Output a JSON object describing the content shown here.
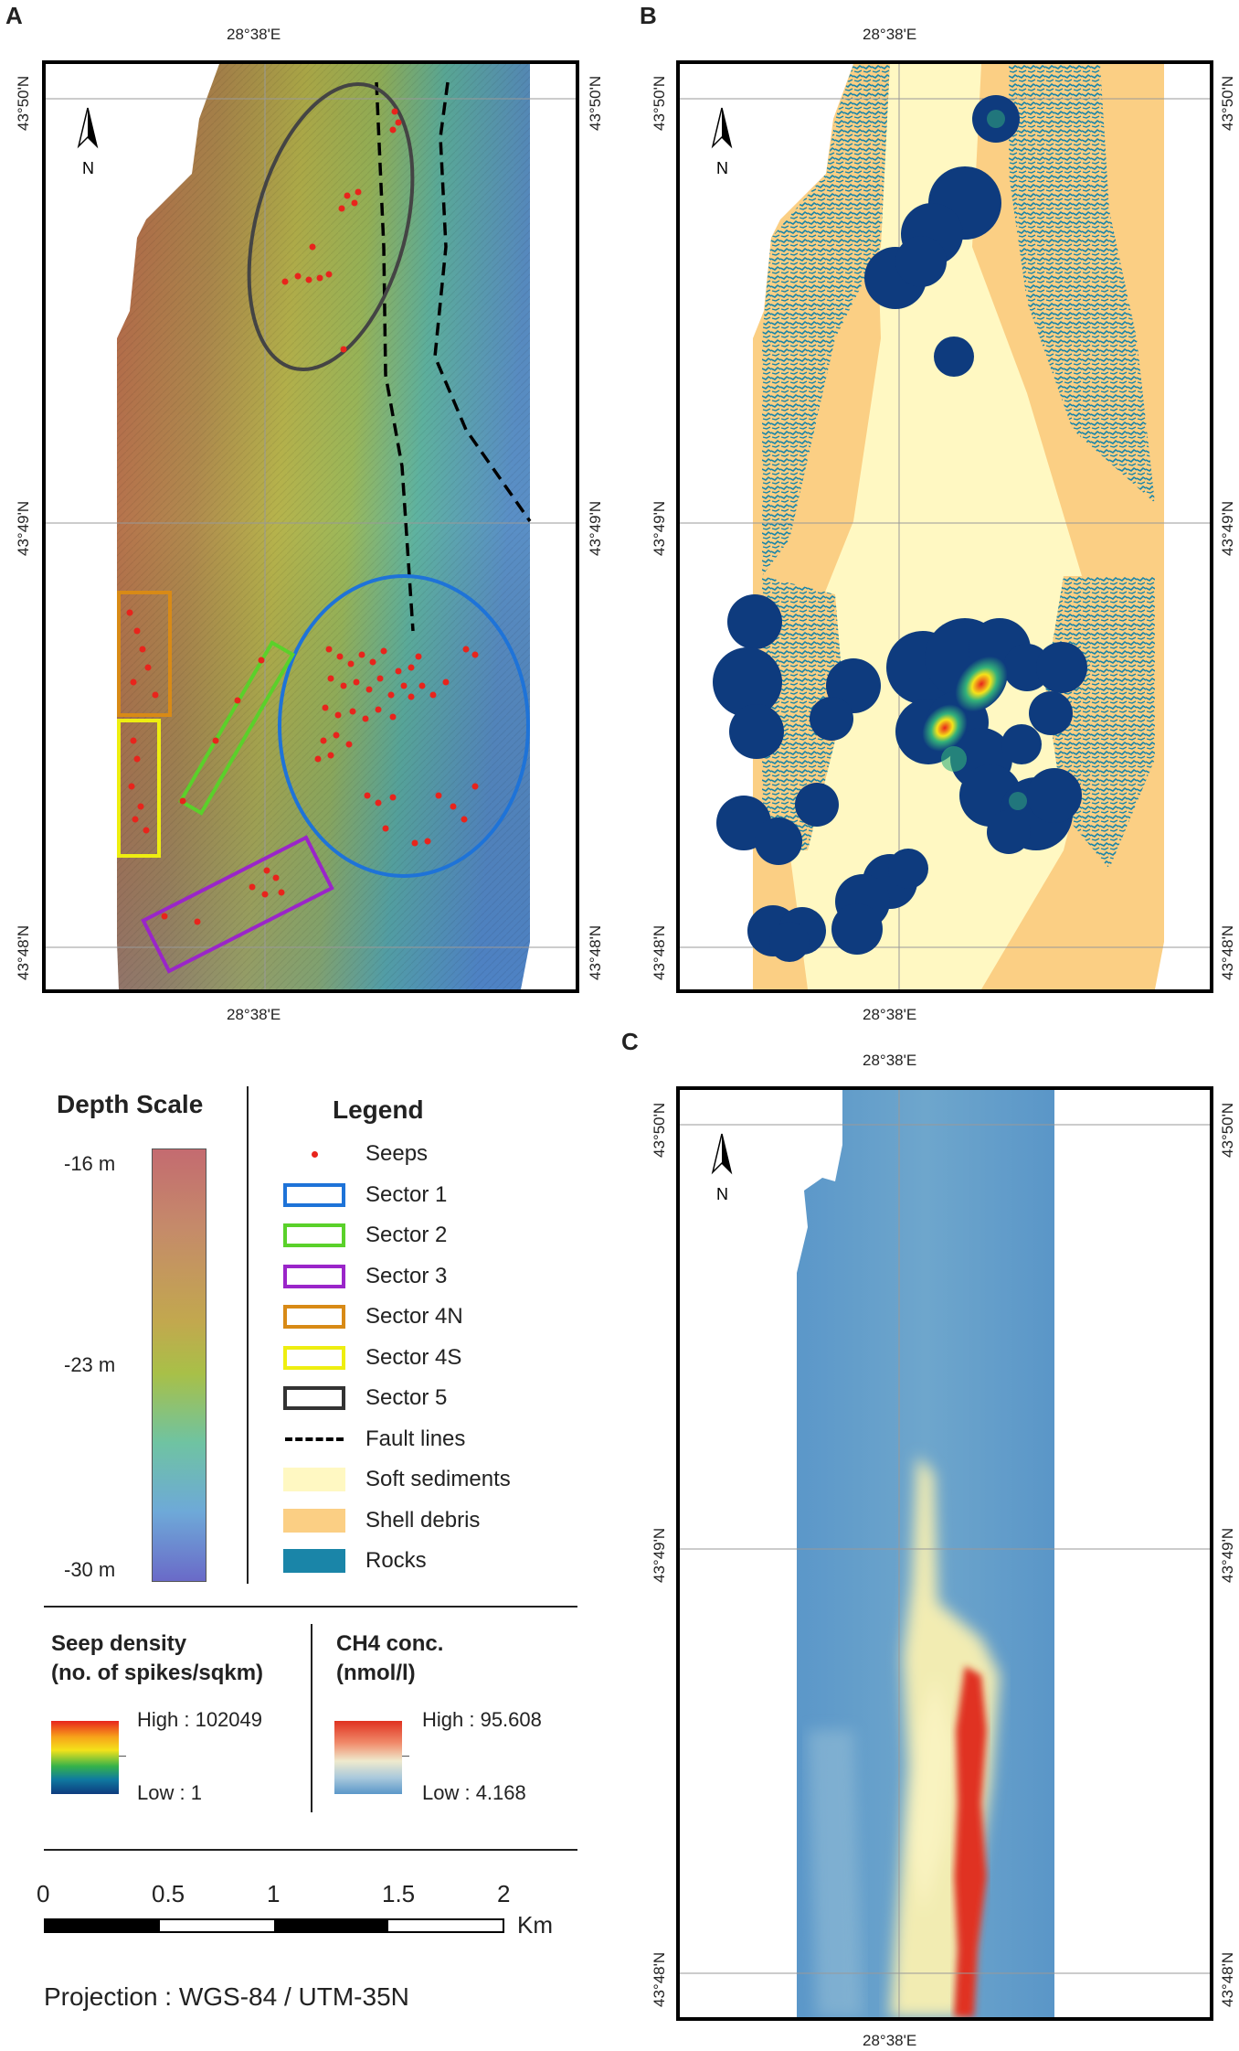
{
  "panels": {
    "a": {
      "letter": "A",
      "lon_top": "28°38'E",
      "lon_bottom": "28°38'E",
      "lat": [
        "43°50'N",
        "43°49'N",
        "43°48'N"
      ]
    },
    "b": {
      "letter": "B",
      "lon_top": "28°38'E",
      "lon_bottom": "28°38'E",
      "lat": [
        "43°50'N",
        "43°49'N",
        "43°48'N"
      ]
    },
    "c": {
      "letter": "C",
      "lon_top": "28°38'E",
      "lon_bottom": "28°38'E",
      "lat": [
        "43°50'N",
        "43°49'N",
        "43°48'N"
      ]
    },
    "north_label": "N"
  },
  "depth_scale": {
    "title": "Depth Scale",
    "labels": [
      "-16 m",
      "-23 m",
      "-30 m"
    ]
  },
  "legend": {
    "title": "Legend",
    "items": [
      {
        "label": "Seeps",
        "symbol": "dot",
        "color": "#e8241c"
      },
      {
        "label": "Sector 1",
        "symbol": "box",
        "color": "#1e73d8"
      },
      {
        "label": "Sector 2",
        "symbol": "box",
        "color": "#5ad12a"
      },
      {
        "label": "Sector 3",
        "symbol": "box",
        "color": "#9a25c9"
      },
      {
        "label": "Sector 4N",
        "symbol": "box",
        "color": "#d88a16"
      },
      {
        "label": "Sector 4S",
        "symbol": "box",
        "color": "#eeee10"
      },
      {
        "label": "Sector 5",
        "symbol": "box",
        "color": "#333333"
      },
      {
        "label": "Fault lines",
        "symbol": "dash",
        "color": "#000000"
      },
      {
        "label": "Soft sediments",
        "symbol": "fill",
        "color": "#fff8c2"
      },
      {
        "label": "Shell debris",
        "symbol": "fill",
        "color": "#fbcf84"
      },
      {
        "label": "Rocks",
        "symbol": "fill",
        "color": "#1a85a8"
      }
    ]
  },
  "seep_density": {
    "title_line1": "Seep density",
    "title_line2": "(no. of spikes/sqkm)",
    "high": "High : 102049",
    "low": "Low : 1"
  },
  "ch4": {
    "title_line1": "CH4 conc.",
    "title_line2": "(nmol/l)",
    "high": "High : 95.608",
    "low": "Low : 4.168"
  },
  "scale_bar": {
    "ticks": [
      "0",
      "0.5",
      "1",
      "1.5",
      "2"
    ],
    "unit": "Km"
  },
  "projection": "Projection : WGS-84 / UTM-35N"
}
